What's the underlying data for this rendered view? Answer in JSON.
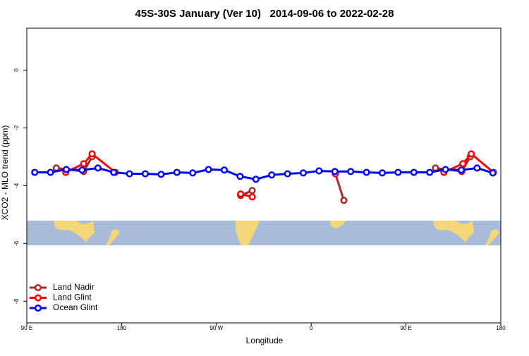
{
  "chart_data": {
    "type": "line",
    "title": "45S-30S January (Ver 10)   2014-09-06 to 2022-02-28",
    "x_label": "Longitude",
    "y_label": "XCO2 - MLO trend (ppm)",
    "xlim": [
      90,
      540
    ],
    "xticks": [
      {
        "value": 90,
        "label": "90 E"
      },
      180,
      {
        "value": 270,
        "label": "90 W"
      },
      {
        "value": 360,
        "label": "0"
      },
      {
        "value": 450,
        "label": "90 E"
      },
      {
        "value": 540,
        "label": "180"
      }
    ],
    "ylim": [
      -8.75,
      1.45
    ],
    "yticks": [
      0,
      -2,
      -4,
      -6,
      -8
    ],
    "legend": "bottom-left",
    "series": [
      {
        "name": "Land Nadir",
        "color": "#a52a2a",
        "x": [
          118,
          144,
          152,
          null,
          293,
          304,
          null,
          383,
          391,
          null,
          478,
          503,
          511
        ],
        "values": [
          -3.39,
          -3.51,
          -3.0,
          null,
          -4.34,
          -4.17,
          null,
          -3.59,
          -4.51,
          null,
          -3.39,
          -3.51,
          -3.0
        ]
      },
      {
        "name": "Land Glint",
        "color": "#ff0000",
        "x": [
          127,
          144,
          152,
          174,
          null,
          293,
          304,
          null,
          383,
          null,
          486,
          504,
          512,
          533
        ],
        "values": [
          -3.54,
          -3.24,
          -2.9,
          -3.54,
          null,
          -4.29,
          -4.39,
          null,
          -3.59,
          null,
          -3.54,
          -3.24,
          -2.9,
          -3.54
        ]
      },
      {
        "name": "Ocean Glint",
        "color": "#0000ff",
        "x": [
          97.5,
          112.5,
          127.5,
          142.5,
          157.5,
          172.5,
          187.5,
          202.5,
          217.5,
          232.5,
          247.5,
          262.5,
          277.5,
          292.5,
          307.5,
          322.5,
          337.5,
          352.5,
          367.5,
          382.5,
          397.5,
          412.5,
          427.5,
          442.5,
          457.5,
          472.5,
          487.5,
          502.5,
          517.5,
          532.5
        ],
        "values": [
          -3.54,
          -3.54,
          -3.44,
          -3.46,
          -3.39,
          -3.54,
          -3.59,
          -3.59,
          -3.61,
          -3.54,
          -3.56,
          -3.44,
          -3.46,
          -3.68,
          -3.78,
          -3.63,
          -3.59,
          -3.56,
          -3.49,
          -3.51,
          -3.51,
          -3.54,
          -3.56,
          -3.54,
          -3.54,
          -3.54,
          -3.44,
          -3.46,
          -3.39,
          -3.56
        ]
      }
    ]
  }
}
